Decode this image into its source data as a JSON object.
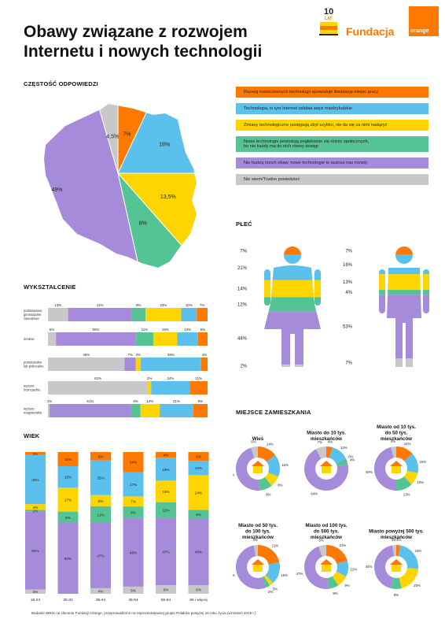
{
  "title_line1": "Obawy związane z rozwojem",
  "title_line2": "Internetu i nowych technologii",
  "logo": {
    "anniv_line1": "10",
    "anniv_line2": "LAT",
    "brand": "Fundacja",
    "square_text": "orange"
  },
  "sections": {
    "frequency": "CZĘSTOŚĆ ODPOWIEDZI",
    "education": "WYKSZTAŁCENIE",
    "age": "WIEK",
    "gender": "PŁEĆ",
    "residence": "MIEJSCE ZAMIESZKANIA"
  },
  "colors": {
    "orange": "#ff7900",
    "blue": "#5bc0eb",
    "yellow": "#ffd500",
    "green": "#55c495",
    "purple": "#a68bdb",
    "gray": "#c8c8c8"
  },
  "legend": [
    {
      "label": "Rozwój nowoczesnych technologii spowoduje likwidację miejsc pracy",
      "color": "#ff7900"
    },
    {
      "label": "Technologia, w tym Internet osłabia więzi międzyludzkie",
      "color": "#5bc0eb"
    },
    {
      "label": "Zmiany technologiczne postępują zbyt szybko, nie da się za nimi nadążyć",
      "color": "#ffd500"
    },
    {
      "label": "Nowe technologie powodują pogłębianie się różnic społecznych,\nbo nie każdy ma do nich równy dostęp",
      "color": "#55c495"
    },
    {
      "label": "Nie budzą moich obaw, nowe technologie to szansa nas rozwój",
      "color": "#a68bdb"
    },
    {
      "label": "Nie wiem/Trudno powiedzieć",
      "color": "#c8c8c8"
    }
  ],
  "footer": "Badanie IBRiS na zlecenie Fundacji Orange, przeprowadzone na reprezentatywnej grupie Polaków powyżej 18 roku życia (wrzesień 2015 r.)",
  "chart_data": [
    {
      "type": "pie",
      "title": "CZĘSTOŚĆ ODPOWIEDZI",
      "categories": [
        "likwidacja miejsc pracy",
        "osłabia więzi",
        "zbyt szybko",
        "różnice społeczne",
        "nie budzą obaw",
        "nie wiem"
      ],
      "values": [
        7,
        18,
        13.5,
        8,
        49,
        4.5
      ],
      "labels": [
        "7%",
        "18%",
        "13,5%",
        "8%",
        "49%",
        "4,5%"
      ]
    },
    {
      "type": "bar",
      "stacked": true,
      "orientation": "horizontal",
      "title": "WYKSZTAŁCENIE",
      "categories": [
        "podstawowe, gimnazjalne, zawodowe",
        "średnie",
        "pomaturalne lub policealne",
        "wyższe licencjackie",
        "wyższe magisterskie"
      ],
      "series": [
        {
          "color": "#c8c8c8",
          "values": [
            13,
            5,
            48,
            62,
            1
          ],
          "labels": [
            "13%",
            "5%",
            "48%",
            "62%",
            "1%"
          ]
        },
        {
          "color": "#a68bdb",
          "values": [
            41,
            50,
            7,
            0,
            51
          ],
          "labels": [
            "41%",
            "50%",
            "7%",
            "",
            "51%"
          ]
        },
        {
          "color": "#55c495",
          "values": [
            9,
            11,
            0,
            0,
            6
          ],
          "labels": [
            "9%",
            "11%",
            "",
            "",
            "6%"
          ]
        },
        {
          "color": "#ffd500",
          "values": [
            23,
            15,
            3,
            2,
            12
          ],
          "labels": [
            "23%",
            "15%",
            "3%",
            "2%",
            "12%"
          ]
        },
        {
          "color": "#5bc0eb",
          "values": [
            10,
            13,
            38,
            24,
            21
          ],
          "labels": [
            "10%",
            "13%",
            "38%",
            "24%",
            "21%"
          ]
        },
        {
          "color": "#ff7900",
          "values": [
            7,
            6,
            4,
            11,
            9
          ],
          "labels": [
            "7%",
            "6%",
            "4%",
            "11%",
            "9%"
          ]
        }
      ]
    },
    {
      "type": "bar",
      "stacked": true,
      "orientation": "vertical",
      "title": "WIEK",
      "categories": [
        "18-24",
        "25-34",
        "35-44",
        "45-54",
        "55-64",
        "65 i więcej"
      ],
      "series": [
        {
          "color": "#c8c8c8",
          "values": [
            3,
            0,
            4,
            5,
            6,
            6
          ],
          "labels": [
            "3%",
            "",
            "4%",
            "5%",
            "6%",
            "6%"
          ]
        },
        {
          "color": "#a68bdb",
          "values": [
            54,
            50,
            47,
            48,
            47,
            46
          ],
          "labels": [
            "54%",
            "50%",
            "47%",
            "48%",
            "47%",
            "46%"
          ]
        },
        {
          "color": "#55c495",
          "values": [
            1,
            8,
            12,
            8,
            11,
            6
          ],
          "labels": [
            "1%",
            "8%",
            "12%",
            "8%",
            "11%",
            "6%"
          ]
        },
        {
          "color": "#ffd500",
          "values": [
            4,
            17,
            8,
            7,
            15,
            24
          ],
          "labels": [
            "4%",
            "17%",
            "8%",
            "7%",
            "15%",
            "24%"
          ]
        },
        {
          "color": "#5bc0eb",
          "values": [
            34,
            15,
            25,
            17,
            16,
            10
          ],
          "labels": [
            "34%",
            "15%",
            "25%",
            "17%",
            "16%",
            "10%"
          ]
        },
        {
          "color": "#ff7900",
          "values": [
            2,
            10,
            6,
            14,
            4,
            6
          ],
          "labels": [
            "2%",
            "10%",
            "6%",
            "14%",
            "4%",
            "6%"
          ]
        }
      ]
    },
    {
      "type": "bar",
      "stacked": true,
      "title": "PŁEĆ",
      "categories": [
        "kobiety",
        "mężczyźni"
      ],
      "series": [
        {
          "color": "#ff7900",
          "values": [
            7,
            7
          ],
          "labels": [
            "7%",
            "7%"
          ]
        },
        {
          "color": "#5bc0eb",
          "values": [
            21,
            16
          ],
          "labels": [
            "21%",
            "16%"
          ]
        },
        {
          "color": "#ffd500",
          "values": [
            14,
            13
          ],
          "labels": [
            "14%",
            "13%"
          ]
        },
        {
          "color": "#55c495",
          "values": [
            12,
            4
          ],
          "labels": [
            "12%",
            "4%"
          ]
        },
        {
          "color": "#a68bdb",
          "values": [
            44,
            53
          ],
          "labels": [
            "44%",
            "53%"
          ]
        },
        {
          "color": "#c8c8c8",
          "values": [
            2,
            7
          ],
          "labels": [
            "2%",
            "7%"
          ]
        }
      ]
    },
    {
      "type": "pie",
      "title": "MIEJSCE ZAMIESZKANIA",
      "donuts": [
        {
          "name": "Wieś",
          "values": [
            14,
            16,
            8,
            9,
            45,
            5
          ],
          "labels": [
            "14%",
            "16%",
            "8%",
            "9%",
            "45%",
            "5%"
          ]
        },
        {
          "name": "Miasto do 10 tys. mieszkańców",
          "values": [
            4,
            12,
            0,
            4,
            64,
            7
          ],
          "labels": [
            "4%",
            "12%",
            "0%",
            "4%",
            "64%",
            "7%"
          ]
        },
        {
          "name": "Miasto od 10 tys. do 50 tys. mieszkańców",
          "values": [
            14,
            16,
            10,
            13,
            49,
            4
          ],
          "labels": [
            "14%",
            "16%",
            "10%",
            "13%",
            "49%",
            "4%"
          ]
        },
        {
          "name": "Miasto od 50 tys. do 100 tys. mieszkańców",
          "values": [
            21,
            16,
            3,
            3,
            52,
            3
          ],
          "labels": [
            "21%",
            "16%",
            "3%",
            "3%",
            "52%",
            "3%"
          ]
        },
        {
          "name": "Miasto od 100 tys. do 500 tys. mieszkańców",
          "values": [
            21,
            12,
            9,
            8,
            47,
            6
          ],
          "labels": [
            "21%",
            "12%",
            "9%",
            "8%",
            "47%",
            "6%"
          ]
        },
        {
          "name": "Miasto powyżej 500 tys. mieszkańców",
          "values": [
            3,
            24,
            20,
            8,
            44,
            3
          ],
          "labels": [
            "3%",
            "24%",
            "20%",
            "8%",
            "44%",
            "3%"
          ]
        }
      ]
    }
  ]
}
